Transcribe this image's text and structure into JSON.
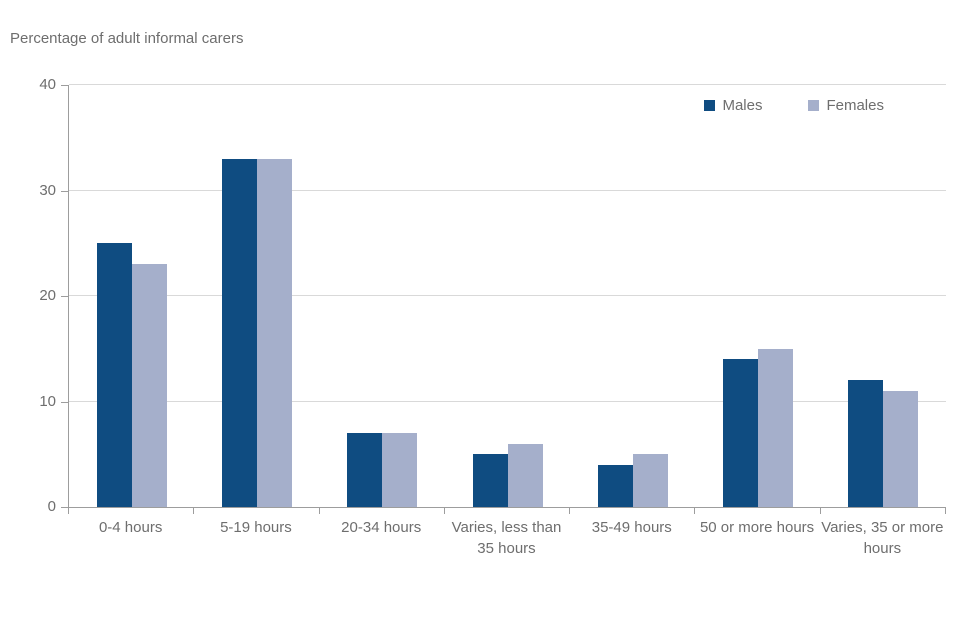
{
  "chart_data": {
    "type": "bar",
    "title": "Percentage of adult informal carers",
    "categories": [
      "0-4 hours",
      "5-19 hours",
      "20-34 hours",
      "Varies, less than 35 hours",
      "35-49 hours",
      "50 or more hours",
      "Varies, 35 or more hours"
    ],
    "series": [
      {
        "name": "Males",
        "color": "#0f4c81",
        "values": [
          25,
          33,
          7,
          5,
          4,
          14,
          12
        ]
      },
      {
        "name": "Females",
        "color": "#a5afcb",
        "values": [
          23,
          33,
          7,
          6,
          5,
          15,
          11
        ]
      }
    ],
    "ylim": [
      0,
      40
    ],
    "yticks": [
      0,
      10,
      20,
      30,
      40
    ],
    "ylabel": "",
    "xlabel": "",
    "grid": "horizontal",
    "legend_position": "top-right-inside-plot"
  }
}
